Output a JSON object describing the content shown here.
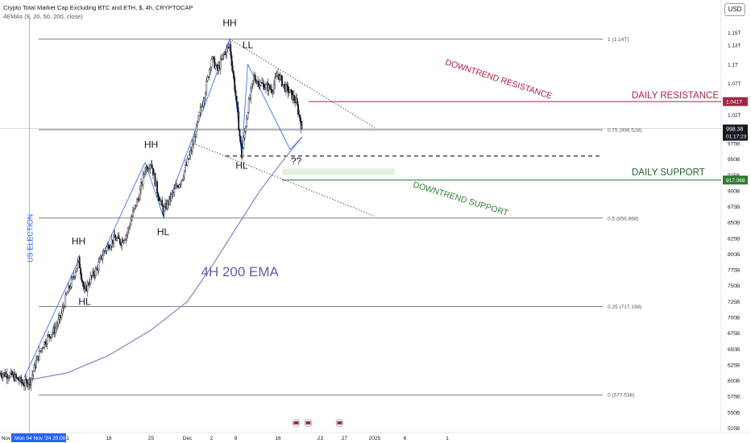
{
  "header": {
    "title": "Crypto Total Market Cap Excluding BTC and ETH, $, 4h, CRYPTOCAP",
    "indicator": "4EMAs (9, 20, 50, 200, close)",
    "currency_button": "USD"
  },
  "colors": {
    "candle": "#131722",
    "ema200": "#8b8fc7",
    "trend_blue": "#2962ff",
    "resistance": "#9c2a44",
    "support": "#2e7d32",
    "fib": "#55575e",
    "election": "#2962ff",
    "price_label": "#131722",
    "timer_label": "#131722",
    "resistance_label": "#b2223c",
    "support_label": "#1f5f28"
  },
  "chart_data": {
    "type": "candlestick",
    "y_axis": {
      "ticks": [
        "1.15T",
        "1.13T",
        "1.1T",
        "1.07T",
        "1.02T",
        "975B",
        "950B",
        "925B",
        "900B",
        "875B",
        "850B",
        "825B",
        "800B",
        "775B",
        "750B",
        "725B",
        "700B",
        "675B",
        "650B",
        "625B",
        "600B",
        "575B",
        "550B",
        "525B"
      ],
      "tick_values": [
        1150,
        1130,
        1100,
        1070,
        1020,
        975,
        950,
        925,
        900,
        875,
        850,
        825,
        800,
        775,
        750,
        725,
        700,
        675,
        650,
        625,
        600,
        575,
        550,
        525
      ]
    },
    "x_axis": {
      "ticks": [
        "Nov",
        "11",
        "18",
        "25",
        "Dec",
        "2",
        "9",
        "16",
        "23",
        "27",
        "2025",
        "6",
        "1"
      ],
      "tick_dates": [
        "2024-11-01",
        "2024-11-11",
        "2024-11-18",
        "2024-11-25",
        "2024-12-01",
        "2024-12-05",
        "2024-12-09",
        "2024-12-16",
        "2024-12-23",
        "2024-12-27",
        "2025-01-01",
        "2025-01-06",
        "2025-01-13"
      ],
      "crosshair_label": "Mon 04 Nov '24  20:00"
    },
    "price_path": [
      [
        "2024-10-31",
        612
      ],
      [
        "2024-11-02",
        608
      ],
      [
        "2024-11-04",
        595
      ],
      [
        "2024-11-05",
        600
      ],
      [
        "2024-11-06",
        630
      ],
      [
        "2024-11-07",
        655
      ],
      [
        "2024-11-08",
        670
      ],
      [
        "2024-11-09",
        680
      ],
      [
        "2024-11-10",
        700
      ],
      [
        "2024-11-11",
        735
      ],
      [
        "2024-11-12",
        760
      ],
      [
        "2024-11-13",
        790
      ],
      [
        "2024-11-14",
        740
      ],
      [
        "2024-11-15",
        762
      ],
      [
        "2024-11-16",
        775
      ],
      [
        "2024-11-17",
        800
      ],
      [
        "2024-11-18",
        815
      ],
      [
        "2024-11-19",
        825
      ],
      [
        "2024-11-20",
        820
      ],
      [
        "2024-11-21",
        832
      ],
      [
        "2024-11-22",
        865
      ],
      [
        "2024-11-23",
        892
      ],
      [
        "2024-11-24",
        935
      ],
      [
        "2024-11-25",
        945
      ],
      [
        "2024-11-26",
        900
      ],
      [
        "2024-11-27",
        868
      ],
      [
        "2024-11-28",
        885
      ],
      [
        "2024-11-29",
        902
      ],
      [
        "2024-11-30",
        918
      ],
      [
        "2024-12-01",
        945
      ],
      [
        "2024-12-02",
        975
      ],
      [
        "2024-12-03",
        1020
      ],
      [
        "2024-12-04",
        1060
      ],
      [
        "2024-12-05",
        1110
      ],
      [
        "2024-12-06",
        1090
      ],
      [
        "2024-12-07",
        1115
      ],
      [
        "2024-12-08",
        1130
      ],
      [
        "2024-12-09",
        1050
      ],
      [
        "2024-12-10",
        955
      ],
      [
        "2024-12-11",
        1030
      ],
      [
        "2024-12-12",
        1080
      ],
      [
        "2024-12-13",
        1070
      ],
      [
        "2024-12-14",
        1065
      ],
      [
        "2024-12-15",
        1060
      ],
      [
        "2024-12-16",
        1085
      ],
      [
        "2024-12-17",
        1065
      ],
      [
        "2024-12-18",
        1055
      ],
      [
        "2024-12-19",
        1040
      ],
      [
        "2024-12-20",
        998
      ]
    ],
    "ema200_path": [
      [
        "2024-11-04",
        600
      ],
      [
        "2024-11-11",
        612
      ],
      [
        "2024-11-18",
        640
      ],
      [
        "2024-11-25",
        680
      ],
      [
        "2024-12-01",
        725
      ],
      [
        "2024-12-05",
        780
      ],
      [
        "2024-12-09",
        840
      ],
      [
        "2024-12-13",
        900
      ],
      [
        "2024-12-17",
        950
      ],
      [
        "2024-12-20",
        985
      ]
    ],
    "levels": [
      {
        "name": "fib-1",
        "value": 1140,
        "label": "1 (1.14T)"
      },
      {
        "name": "fib-0.75",
        "value": 996.528,
        "label": "0.75 (996.528)"
      },
      {
        "name": "fib-0.5",
        "value": 856.868,
        "label": "0.5 (856.868)"
      },
      {
        "name": "fib-0.25",
        "value": 717.198,
        "label": "0.25 (717.198)"
      },
      {
        "name": "fib-0",
        "value": 577.538,
        "label": "0 (577.538)"
      }
    ],
    "daily_resistance": {
      "value": 1041,
      "label": "DAILY RESISTANCE",
      "price_label": "1.041T"
    },
    "daily_support": {
      "value": 917.068,
      "label": "DAILY SUPPORT",
      "price_label": "917.068"
    },
    "dashed_level": 955,
    "current_price": {
      "value": 998.38,
      "label": "998.38",
      "timer": "01:17:23"
    },
    "annotations": [
      {
        "text": "HH",
        "date": "2024-11-13",
        "value": 815
      },
      {
        "text": "HL",
        "date": "2024-11-14",
        "value": 720
      },
      {
        "text": "HH",
        "date": "2024-11-25",
        "value": 968
      },
      {
        "text": "HL",
        "date": "2024-11-27",
        "value": 830
      },
      {
        "text": "HH",
        "date": "2024-12-08",
        "value": 1160
      },
      {
        "text": "HL",
        "date": "2024-12-10",
        "value": 935
      },
      {
        "text": "LL",
        "date": "2024-12-11",
        "value": 1125
      },
      {
        "text": "??",
        "date": "2024-12-19",
        "value": 942
      },
      {
        "text": "4H 200 EMA",
        "date": "2024-12-01",
        "value": 765
      },
      {
        "text": "DOWNTREND RESISTANCE",
        "date": "2024-12-15",
        "value": 1125
      },
      {
        "text": "DOWNTREND SUPPORT",
        "date": "2024-12-15",
        "value": 900
      },
      {
        "text": "US ELECTION",
        "date": "2024-11-05",
        "value": 825
      }
    ],
    "trendlines": [
      {
        "name": "downtrend-resistance",
        "from": [
          "2024-12-08",
          1140
        ],
        "to": [
          "2025-01-01",
          1000
        ]
      },
      {
        "name": "downtrend-support",
        "from": [
          "2024-12-02",
          975
        ],
        "to": [
          "2025-01-01",
          860
        ]
      }
    ]
  }
}
